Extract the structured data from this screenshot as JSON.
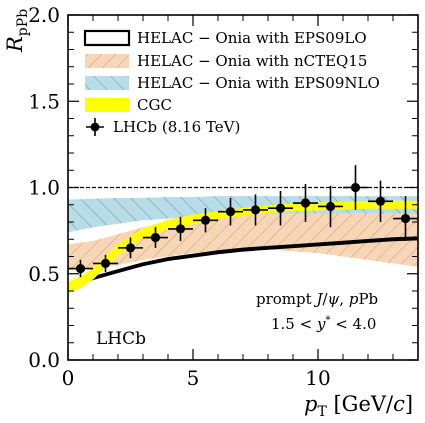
{
  "chart_data": {
    "type": "line",
    "ylabel": "R_pPb",
    "xlabel": "p_T [GeV/c]",
    "xlim": [
      0,
      14
    ],
    "ylim": [
      0,
      2
    ],
    "x_ticks": [
      0,
      5,
      10
    ],
    "y_ticks": [
      0.0,
      0.5,
      1.0,
      1.5,
      2.0
    ],
    "x_tick_labels": [
      "0",
      "5",
      "10"
    ],
    "y_tick_labels": [
      "0.0",
      "0.5",
      "1.0",
      "1.5",
      "2.0"
    ],
    "reference_line": 1.0,
    "legend_position": "top-left",
    "legend": [
      "HELAC − Onia with EPS09LO",
      "HELAC − Onia with nCTEQ15",
      "HELAC − Onia with EPS09NLO",
      "CGC",
      "LHCb (8.16 TeV)"
    ],
    "annotations": {
      "process": "prompt J/ψ ,  pPb",
      "rapidity": "1.5 < y* < 4.0",
      "experiment": "LHCb"
    },
    "colors": {
      "eps09lo": "#000000",
      "ncteq15": "#f7d6b7",
      "ncteq15_hatch": "#d9a06a",
      "eps09nlo": "#b7dde9",
      "eps09nlo_hatch": "#7a95a3",
      "cgc": "#ffff00",
      "data": "#000000"
    },
    "series": [
      {
        "name": "HELAC − Onia with EPS09LO",
        "style": "band",
        "x": [
          0,
          0.5,
          1,
          1.5,
          2,
          3,
          4,
          5,
          6,
          7,
          8,
          9,
          10,
          11,
          12,
          13,
          14
        ],
        "lower": [
          0.42,
          0.44,
          0.47,
          0.49,
          0.51,
          0.55,
          0.58,
          0.6,
          0.62,
          0.635,
          0.645,
          0.655,
          0.665,
          0.675,
          0.685,
          0.695,
          0.7
        ],
        "upper": [
          0.43,
          0.45,
          0.48,
          0.5,
          0.52,
          0.56,
          0.59,
          0.61,
          0.63,
          0.645,
          0.655,
          0.665,
          0.675,
          0.685,
          0.695,
          0.705,
          0.71
        ]
      },
      {
        "name": "HELAC − Onia with nCTEQ15",
        "style": "hatched-band",
        "x": [
          0,
          1,
          2,
          3,
          4,
          5,
          6,
          7,
          8,
          9,
          10,
          11,
          12,
          13,
          14
        ],
        "lower": [
          0.52,
          0.53,
          0.55,
          0.58,
          0.6,
          0.62,
          0.63,
          0.64,
          0.64,
          0.63,
          0.62,
          0.6,
          0.58,
          0.56,
          0.54
        ],
        "upper": [
          0.67,
          0.69,
          0.73,
          0.77,
          0.8,
          0.82,
          0.84,
          0.86,
          0.87,
          0.88,
          0.89,
          0.9,
          0.9,
          0.9,
          0.9
        ]
      },
      {
        "name": "HELAC − Onia with EPS09NLO",
        "style": "hatched-band",
        "x": [
          0,
          1,
          2,
          3,
          4,
          5,
          6,
          7,
          8,
          9,
          10,
          11,
          12,
          13,
          14
        ],
        "lower": [
          0.74,
          0.77,
          0.79,
          0.81,
          0.82,
          0.83,
          0.84,
          0.845,
          0.85,
          0.85,
          0.85,
          0.85,
          0.85,
          0.85,
          0.85
        ],
        "upper": [
          0.93,
          0.935,
          0.94,
          0.94,
          0.945,
          0.945,
          0.95,
          0.95,
          0.95,
          0.95,
          0.95,
          0.95,
          0.95,
          0.95,
          0.95
        ]
      },
      {
        "name": "CGC",
        "style": "band",
        "x": [
          0,
          0.5,
          1,
          1.5,
          2,
          3,
          4,
          5,
          6,
          7,
          8,
          9,
          10,
          11,
          12,
          13,
          14
        ],
        "lower": [
          0.39,
          0.42,
          0.47,
          0.54,
          0.61,
          0.71,
          0.76,
          0.79,
          0.82,
          0.84,
          0.855,
          0.865,
          0.87,
          0.875,
          0.88,
          0.88,
          0.88
        ],
        "upper": [
          0.45,
          0.48,
          0.53,
          0.6,
          0.67,
          0.76,
          0.81,
          0.84,
          0.86,
          0.88,
          0.895,
          0.905,
          0.91,
          0.915,
          0.92,
          0.92,
          0.92
        ]
      },
      {
        "name": "LHCb (8.16 TeV)",
        "style": "points",
        "x": [
          0.5,
          1.5,
          2.5,
          3.5,
          4.5,
          5.5,
          6.5,
          7.5,
          8.5,
          9.5,
          10.5,
          11.5,
          12.5,
          13.5
        ],
        "y": [
          0.53,
          0.56,
          0.65,
          0.71,
          0.76,
          0.81,
          0.86,
          0.87,
          0.88,
          0.91,
          0.89,
          1.0,
          0.92,
          0.82
        ],
        "xerr": [
          0.5,
          0.5,
          0.5,
          0.5,
          0.5,
          0.5,
          0.5,
          0.5,
          0.5,
          0.5,
          0.5,
          0.5,
          0.5,
          0.5
        ],
        "yerr": [
          0.05,
          0.05,
          0.06,
          0.06,
          0.07,
          0.07,
          0.08,
          0.09,
          0.1,
          0.11,
          0.12,
          0.13,
          0.12,
          0.13
        ]
      }
    ]
  }
}
